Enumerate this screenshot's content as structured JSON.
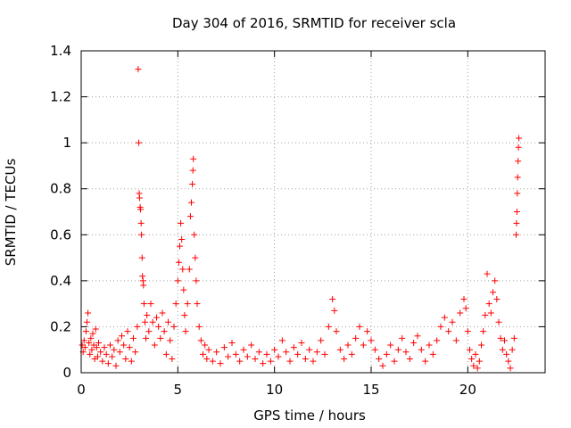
{
  "chart_data": {
    "type": "scatter",
    "title": "Day 304 of 2016, SRMTID for receiver scla",
    "xlabel": "GPS time / hours",
    "ylabel": "SRMTID / TECUs",
    "xlim": [
      0,
      24
    ],
    "ylim": [
      0,
      1.4
    ],
    "xticks": [
      0,
      5,
      10,
      15,
      20
    ],
    "xtick_labels": [
      "0",
      "5",
      "10",
      "15",
      "20"
    ],
    "yticks": [
      0,
      0.2,
      0.4,
      0.6,
      0.8,
      1,
      1.2,
      1.4
    ],
    "ytick_labels": [
      "0",
      "0.2",
      "0.4",
      "0.6",
      "0.8",
      "1",
      "1.2",
      "1.4"
    ],
    "grid": true,
    "marker": "+",
    "color": "#ff0000",
    "series": [
      {
        "name": "SRMTID",
        "points": [
          [
            0.05,
            0.12
          ],
          [
            0.1,
            0.09
          ],
          [
            0.15,
            0.14
          ],
          [
            0.2,
            0.11
          ],
          [
            0.25,
            0.18
          ],
          [
            0.3,
            0.22
          ],
          [
            0.35,
            0.26
          ],
          [
            0.4,
            0.13
          ],
          [
            0.45,
            0.08
          ],
          [
            0.5,
            0.15
          ],
          [
            0.55,
            0.1
          ],
          [
            0.6,
            0.17
          ],
          [
            0.65,
            0.12
          ],
          [
            0.7,
            0.06
          ],
          [
            0.75,
            0.19
          ],
          [
            0.8,
            0.11
          ],
          [
            0.85,
            0.07
          ],
          [
            0.9,
            0.13
          ],
          [
            1.0,
            0.09
          ],
          [
            1.1,
            0.05
          ],
          [
            1.2,
            0.11
          ],
          [
            1.3,
            0.08
          ],
          [
            1.4,
            0.04
          ],
          [
            1.5,
            0.12
          ],
          [
            1.6,
            0.07
          ],
          [
            1.7,
            0.1
          ],
          [
            1.8,
            0.03
          ],
          [
            1.9,
            0.14
          ],
          [
            2.0,
            0.09
          ],
          [
            2.1,
            0.16
          ],
          [
            2.2,
            0.12
          ],
          [
            2.3,
            0.06
          ],
          [
            2.4,
            0.18
          ],
          [
            2.5,
            0.11
          ],
          [
            2.6,
            0.05
          ],
          [
            2.7,
            0.15
          ],
          [
            2.8,
            0.09
          ],
          [
            2.9,
            0.2
          ],
          [
            2.95,
            1.32
          ],
          [
            2.98,
            1.0
          ],
          [
            3.0,
            0.78
          ],
          [
            3.02,
            0.76
          ],
          [
            3.05,
            0.72
          ],
          [
            3.07,
            0.71
          ],
          [
            3.1,
            0.65
          ],
          [
            3.12,
            0.6
          ],
          [
            3.15,
            0.5
          ],
          [
            3.17,
            0.42
          ],
          [
            3.2,
            0.4
          ],
          [
            3.22,
            0.38
          ],
          [
            3.25,
            0.3
          ],
          [
            3.3,
            0.22
          ],
          [
            3.35,
            0.15
          ],
          [
            3.4,
            0.25
          ],
          [
            3.5,
            0.18
          ],
          [
            3.6,
            0.3
          ],
          [
            3.7,
            0.22
          ],
          [
            3.8,
            0.12
          ],
          [
            3.9,
            0.24
          ],
          [
            4.0,
            0.2
          ],
          [
            4.1,
            0.15
          ],
          [
            4.2,
            0.26
          ],
          [
            4.3,
            0.18
          ],
          [
            4.4,
            0.08
          ],
          [
            4.5,
            0.22
          ],
          [
            4.6,
            0.14
          ],
          [
            4.7,
            0.06
          ],
          [
            4.8,
            0.2
          ],
          [
            4.9,
            0.3
          ],
          [
            5.0,
            0.4
          ],
          [
            5.05,
            0.48
          ],
          [
            5.1,
            0.55
          ],
          [
            5.15,
            0.65
          ],
          [
            5.2,
            0.58
          ],
          [
            5.25,
            0.45
          ],
          [
            5.3,
            0.36
          ],
          [
            5.35,
            0.25
          ],
          [
            5.4,
            0.18
          ],
          [
            5.5,
            0.3
          ],
          [
            5.6,
            0.45
          ],
          [
            5.65,
            0.68
          ],
          [
            5.7,
            0.74
          ],
          [
            5.75,
            0.82
          ],
          [
            5.78,
            0.88
          ],
          [
            5.8,
            0.93
          ],
          [
            5.85,
            0.6
          ],
          [
            5.9,
            0.5
          ],
          [
            5.95,
            0.4
          ],
          [
            6.0,
            0.3
          ],
          [
            6.1,
            0.2
          ],
          [
            6.2,
            0.14
          ],
          [
            6.3,
            0.08
          ],
          [
            6.4,
            0.12
          ],
          [
            6.5,
            0.06
          ],
          [
            6.6,
            0.1
          ],
          [
            6.8,
            0.05
          ],
          [
            7.0,
            0.09
          ],
          [
            7.2,
            0.04
          ],
          [
            7.4,
            0.11
          ],
          [
            7.6,
            0.07
          ],
          [
            7.8,
            0.13
          ],
          [
            8.0,
            0.08
          ],
          [
            8.2,
            0.05
          ],
          [
            8.4,
            0.1
          ],
          [
            8.6,
            0.07
          ],
          [
            8.8,
            0.12
          ],
          [
            9.0,
            0.06
          ],
          [
            9.2,
            0.09
          ],
          [
            9.4,
            0.04
          ],
          [
            9.6,
            0.08
          ],
          [
            9.8,
            0.05
          ],
          [
            10.0,
            0.1
          ],
          [
            10.2,
            0.07
          ],
          [
            10.4,
            0.14
          ],
          [
            10.6,
            0.09
          ],
          [
            10.8,
            0.05
          ],
          [
            11.0,
            0.11
          ],
          [
            11.2,
            0.08
          ],
          [
            11.4,
            0.13
          ],
          [
            11.6,
            0.06
          ],
          [
            11.8,
            0.1
          ],
          [
            12.0,
            0.05
          ],
          [
            12.2,
            0.09
          ],
          [
            12.4,
            0.14
          ],
          [
            12.6,
            0.08
          ],
          [
            12.8,
            0.2
          ],
          [
            13.0,
            0.32
          ],
          [
            13.1,
            0.27
          ],
          [
            13.2,
            0.18
          ],
          [
            13.4,
            0.1
          ],
          [
            13.6,
            0.06
          ],
          [
            13.8,
            0.12
          ],
          [
            14.0,
            0.08
          ],
          [
            14.2,
            0.15
          ],
          [
            14.4,
            0.2
          ],
          [
            14.6,
            0.12
          ],
          [
            14.8,
            0.18
          ],
          [
            15.0,
            0.14
          ],
          [
            15.2,
            0.1
          ],
          [
            15.4,
            0.06
          ],
          [
            15.6,
            0.03
          ],
          [
            15.8,
            0.08
          ],
          [
            16.0,
            0.12
          ],
          [
            16.2,
            0.05
          ],
          [
            16.4,
            0.1
          ],
          [
            16.6,
            0.15
          ],
          [
            16.8,
            0.09
          ],
          [
            17.0,
            0.06
          ],
          [
            17.2,
            0.13
          ],
          [
            17.4,
            0.16
          ],
          [
            17.6,
            0.1
          ],
          [
            17.8,
            0.05
          ],
          [
            18.0,
            0.12
          ],
          [
            18.2,
            0.08
          ],
          [
            18.4,
            0.14
          ],
          [
            18.6,
            0.2
          ],
          [
            18.8,
            0.24
          ],
          [
            19.0,
            0.18
          ],
          [
            19.2,
            0.22
          ],
          [
            19.4,
            0.14
          ],
          [
            19.6,
            0.26
          ],
          [
            19.8,
            0.32
          ],
          [
            19.9,
            0.28
          ],
          [
            20.0,
            0.18
          ],
          [
            20.1,
            0.1
          ],
          [
            20.2,
            0.06
          ],
          [
            20.3,
            0.03
          ],
          [
            20.4,
            0.08
          ],
          [
            20.5,
            0.02
          ],
          [
            20.6,
            0.05
          ],
          [
            20.7,
            0.12
          ],
          [
            20.8,
            0.18
          ],
          [
            20.9,
            0.25
          ],
          [
            21.0,
            0.43
          ],
          [
            21.1,
            0.3
          ],
          [
            21.2,
            0.26
          ],
          [
            21.3,
            0.35
          ],
          [
            21.4,
            0.4
          ],
          [
            21.5,
            0.32
          ],
          [
            21.6,
            0.22
          ],
          [
            21.7,
            0.15
          ],
          [
            21.8,
            0.1
          ],
          [
            21.9,
            0.14
          ],
          [
            22.0,
            0.08
          ],
          [
            22.1,
            0.05
          ],
          [
            22.2,
            0.02
          ],
          [
            22.3,
            0.1
          ],
          [
            22.4,
            0.15
          ],
          [
            22.5,
            0.6
          ],
          [
            22.52,
            0.65
          ],
          [
            22.54,
            0.7
          ],
          [
            22.56,
            0.78
          ],
          [
            22.58,
            0.85
          ],
          [
            22.6,
            0.92
          ],
          [
            22.62,
            0.98
          ],
          [
            22.64,
            1.02
          ]
        ]
      }
    ]
  }
}
